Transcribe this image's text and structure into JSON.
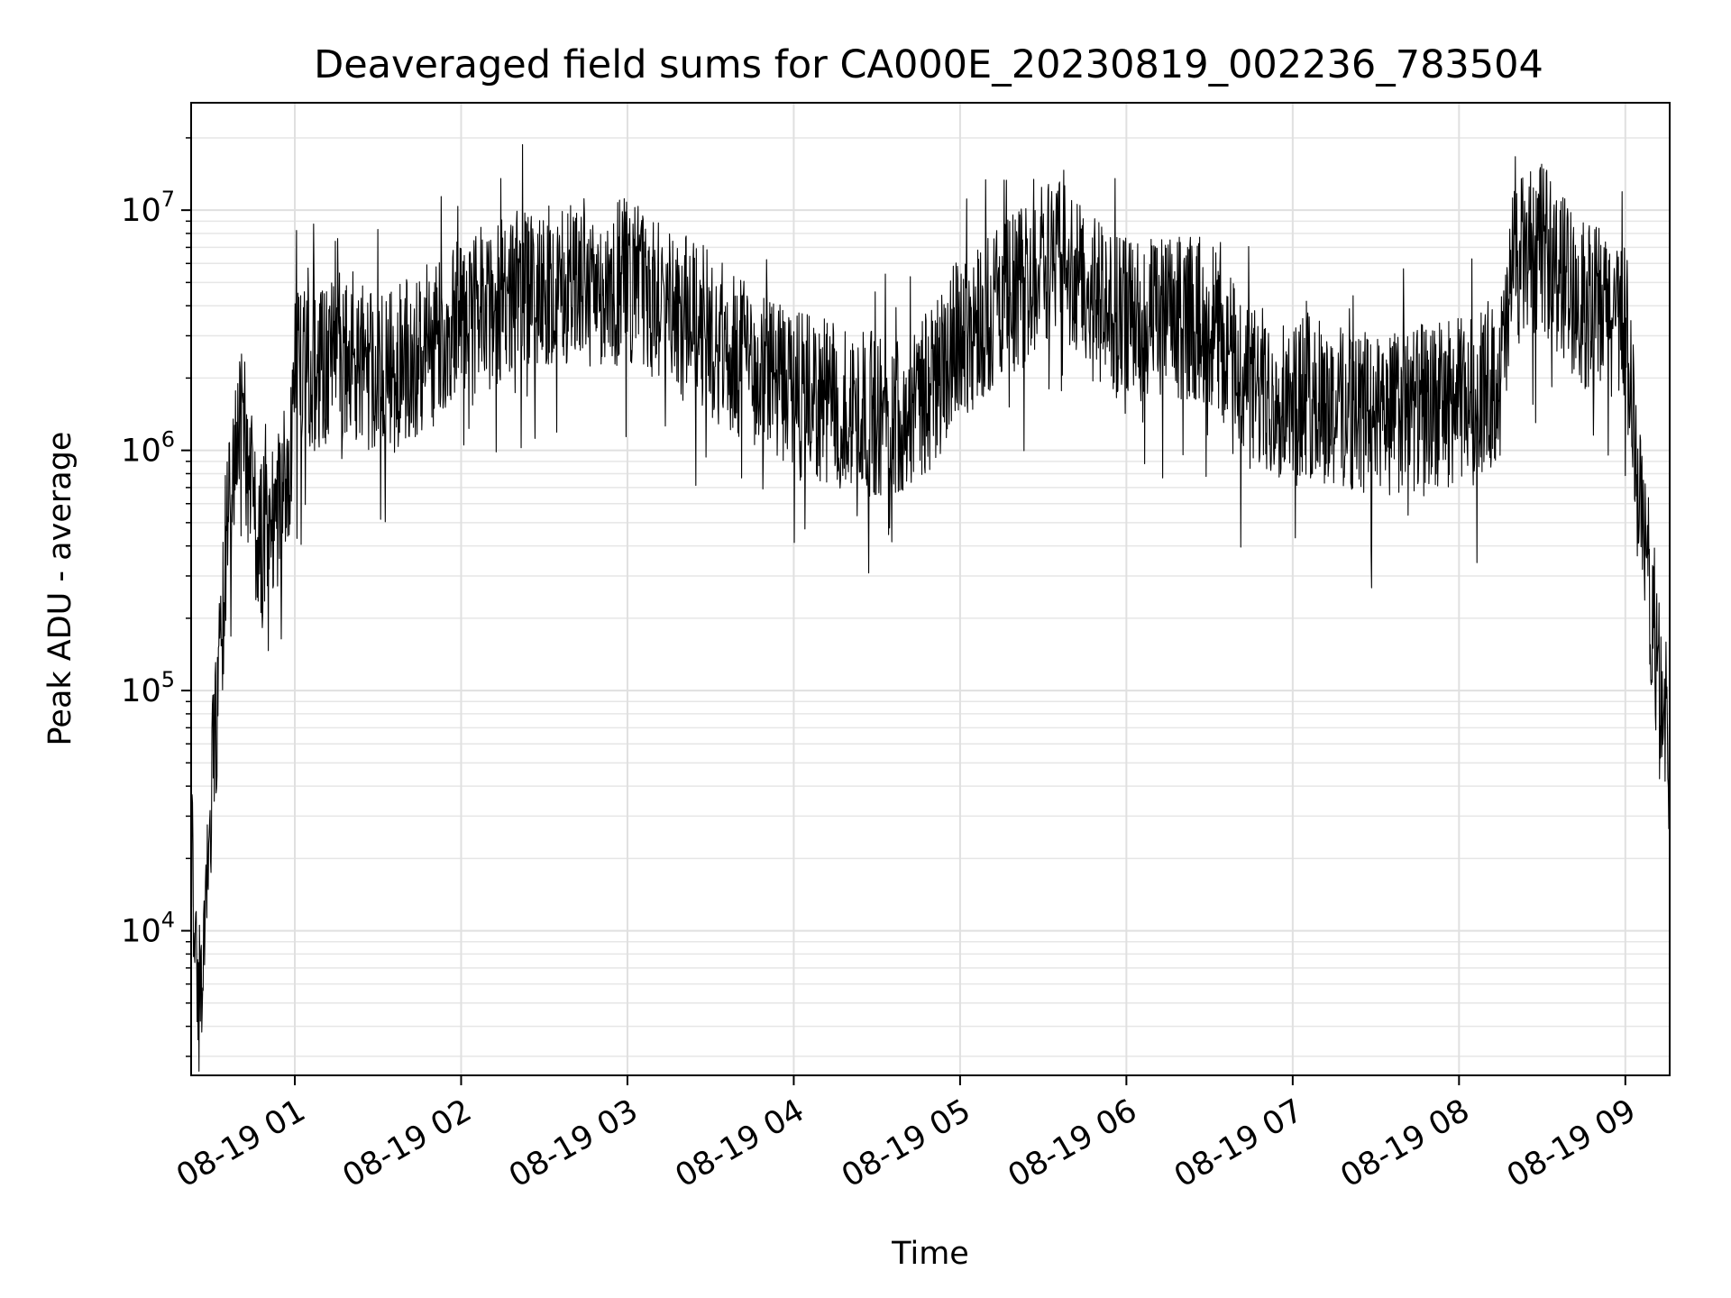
{
  "chart_data": {
    "type": "line",
    "title": "Deaveraged field sums for CA000E_20230819_002236_783504",
    "xlabel": "Time",
    "ylabel": "Peak ADU - average",
    "yscale": "log",
    "xlim": [
      "2023-08-19 00:22:36",
      "2023-08-19 09:16:00"
    ],
    "ylim": [
      2500,
      28000000
    ],
    "grid": true,
    "x_ticks": [
      {
        "label": "08-19 01",
        "value": "2023-08-19 01:00"
      },
      {
        "label": "08-19 02",
        "value": "2023-08-19 02:00"
      },
      {
        "label": "08-19 03",
        "value": "2023-08-19 03:00"
      },
      {
        "label": "08-19 04",
        "value": "2023-08-19 04:00"
      },
      {
        "label": "08-19 05",
        "value": "2023-08-19 05:00"
      },
      {
        "label": "08-19 06",
        "value": "2023-08-19 06:00"
      },
      {
        "label": "08-19 07",
        "value": "2023-08-19 07:00"
      },
      {
        "label": "08-19 08",
        "value": "2023-08-19 08:00"
      },
      {
        "label": "08-19 09",
        "value": "2023-08-19 09:00"
      }
    ],
    "y_ticks": [
      {
        "base": "10",
        "exp": "4",
        "value": 10000
      },
      {
        "base": "10",
        "exp": "5",
        "value": 100000
      },
      {
        "base": "10",
        "exp": "6",
        "value": 1000000
      },
      {
        "base": "10",
        "exp": "7",
        "value": 10000000
      }
    ],
    "series": [
      {
        "color": "#000000",
        "x": [
          "2023-08-19 00:22:36",
          "2023-08-19 00:24:00",
          "2023-08-19 00:26:00",
          "2023-08-19 00:27:00",
          "2023-08-19 00:28:00",
          "2023-08-19 00:30:00",
          "2023-08-19 00:32:00",
          "2023-08-19 00:34:00",
          "2023-08-19 00:36:00",
          "2023-08-19 00:38:00",
          "2023-08-19 00:40:00",
          "2023-08-19 00:42:00",
          "2023-08-19 00:44:00",
          "2023-08-19 00:46:00",
          "2023-08-19 00:48:00",
          "2023-08-19 00:50:00",
          "2023-08-19 00:52:00",
          "2023-08-19 00:54:00",
          "2023-08-19 00:56:00",
          "2023-08-19 00:58:00",
          "2023-08-19 01:00:00",
          "2023-08-19 01:15:00",
          "2023-08-19 01:30:00",
          "2023-08-19 01:45:00",
          "2023-08-19 02:00:00",
          "2023-08-19 02:30:00",
          "2023-08-19 03:00:00",
          "2023-08-19 03:30:00",
          "2023-08-19 04:00:00",
          "2023-08-19 04:30:00",
          "2023-08-19 04:45:00",
          "2023-08-19 05:00:00",
          "2023-08-19 05:20:00",
          "2023-08-19 05:35:00",
          "2023-08-19 05:50:00",
          "2023-08-19 06:00:00",
          "2023-08-19 06:30:00",
          "2023-08-19 06:45:00",
          "2023-08-19 07:00:00",
          "2023-08-19 07:30:00",
          "2023-08-19 08:00:00",
          "2023-08-19 08:15:00",
          "2023-08-19 08:20:00",
          "2023-08-19 08:30:00",
          "2023-08-19 08:45:00",
          "2023-08-19 09:00:00",
          "2023-08-19 09:05:00",
          "2023-08-19 09:10:00",
          "2023-08-19 09:16:00"
        ],
        "y": [
          25000,
          8000,
          4500,
          6000,
          15000,
          40000,
          80000,
          200000,
          500000,
          1000000,
          1100000,
          1200000,
          700000,
          500000,
          400000,
          450000,
          500000,
          550000,
          700000,
          900000,
          2000000,
          2500000,
          2000000,
          2500000,
          3500000,
          5000000,
          5000000,
          3000000,
          1700000,
          1400000,
          1500000,
          3000000,
          4500000,
          7000000,
          4000000,
          3500000,
          3500000,
          1800000,
          1700000,
          1400000,
          1600000,
          2000000,
          6000000,
          7000000,
          4000000,
          3500000,
          600000,
          200000,
          50000
        ],
        "noise": 0.35
      }
    ]
  }
}
